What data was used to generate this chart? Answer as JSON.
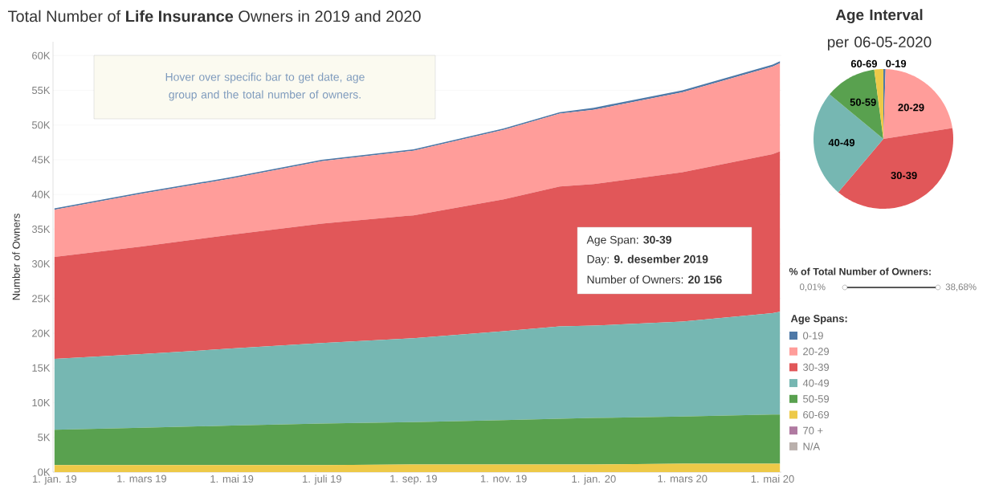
{
  "chart_data": [
    {
      "type": "area",
      "stacked": true,
      "title": "Total Number of **Life Insurance** Owners in 2019 and 2020",
      "ylabel": "Number of Owners",
      "legend_title": "Age Spans:",
      "legend": "right",
      "grid": "y",
      "x": [
        "2019-01-01",
        "2019-03-01",
        "2019-05-01",
        "2019-07-01",
        "2019-09-01",
        "2019-11-01",
        "2019-12-09",
        "2020-01-01",
        "2020-03-01",
        "2020-05-01",
        "2020-05-06"
      ],
      "xlim": [
        "2018-12-31",
        "2020-05-07"
      ],
      "xticks": [
        {
          "value": "2019-01-01",
          "label": "1. jan. 19"
        },
        {
          "value": "2019-03-01",
          "label": "1. mars 19"
        },
        {
          "value": "2019-05-01",
          "label": "1. mai 19"
        },
        {
          "value": "2019-07-01",
          "label": "1. juli 19"
        },
        {
          "value": "2019-09-01",
          "label": "1. sep. 19"
        },
        {
          "value": "2019-11-01",
          "label": "1. nov. 19"
        },
        {
          "value": "2020-01-01",
          "label": "1. jan. 20"
        },
        {
          "value": "2020-03-01",
          "label": "1. mars 20"
        },
        {
          "value": "2020-05-01",
          "label": "1. mai 20"
        }
      ],
      "ylim": [
        0,
        62000
      ],
      "yticks": [
        {
          "value": 0,
          "label": "0K"
        },
        {
          "value": 5000,
          "label": "5K"
        },
        {
          "value": 10000,
          "label": "10K"
        },
        {
          "value": 15000,
          "label": "15K"
        },
        {
          "value": 20000,
          "label": "20K"
        },
        {
          "value": 25000,
          "label": "25K"
        },
        {
          "value": 30000,
          "label": "30K"
        },
        {
          "value": 35000,
          "label": "35K"
        },
        {
          "value": 40000,
          "label": "40K"
        },
        {
          "value": 45000,
          "label": "45K"
        },
        {
          "value": 50000,
          "label": "50K"
        },
        {
          "value": 55000,
          "label": "55K"
        },
        {
          "value": 60000,
          "label": "60K"
        }
      ],
      "series": [
        {
          "name": "N/A",
          "color": "#bab0ac",
          "values": [
            null,
            null,
            null,
            null,
            null,
            null,
            null,
            null,
            null,
            null,
            null
          ]
        },
        {
          "name": "70 +",
          "color": "#b07aa1",
          "values": [
            null,
            null,
            null,
            null,
            null,
            null,
            null,
            null,
            null,
            null,
            null
          ]
        },
        {
          "name": "60-69",
          "color": "#edc948",
          "values": [
            1000,
            1000,
            1000,
            1000,
            1100,
            1100,
            1100,
            1100,
            1200,
            1200,
            1200
          ]
        },
        {
          "name": "50-59",
          "color": "#59a14f",
          "values": [
            5100,
            5400,
            5700,
            6000,
            6100,
            6400,
            6600,
            6700,
            6800,
            7100,
            7100
          ]
        },
        {
          "name": "40-49",
          "color": "#76b7b2",
          "values": [
            10200,
            10600,
            11100,
            11600,
            12100,
            12800,
            13300,
            13300,
            13700,
            14600,
            14800
          ]
        },
        {
          "name": "30-39",
          "color": "#e15759",
          "values": [
            14700,
            15500,
            16400,
            17200,
            17700,
            19000,
            20156,
            20400,
            21500,
            22900,
            23100
          ]
        },
        {
          "name": "20-29",
          "color": "#ff9d9a",
          "values": [
            6800,
            7600,
            8100,
            9000,
            9300,
            10000,
            10500,
            10700,
            11500,
            12600,
            12700
          ]
        },
        {
          "name": "0-19",
          "color": "#4e79a7",
          "values": [
            200,
            200,
            200,
            200,
            200,
            200,
            200,
            300,
            300,
            300,
            300
          ]
        }
      ],
      "annotations": [
        "Hover over specific bar to get date, age group and the total number of owners.",
        "Age Span: **30-39**",
        "Day: **9. desember 2019**",
        "Number of Owners: **20 156**"
      ]
    },
    {
      "type": "pie",
      "title": "**Age Interval** per 06-05-2020",
      "categories": [
        "0-19",
        "20-29",
        "30-39",
        "40-49",
        "50-59",
        "60-69"
      ],
      "values": [
        0.5,
        22.0,
        38.68,
        24.82,
        11.9,
        2.1
      ],
      "colors": [
        "#4e79a7",
        "#ff9d9a",
        "#e15759",
        "#76b7b2",
        "#59a14f",
        "#edc948"
      ],
      "annotations": [
        "% of Total Number of Owners:",
        "0,01%",
        "38,68%"
      ]
    }
  ]
}
